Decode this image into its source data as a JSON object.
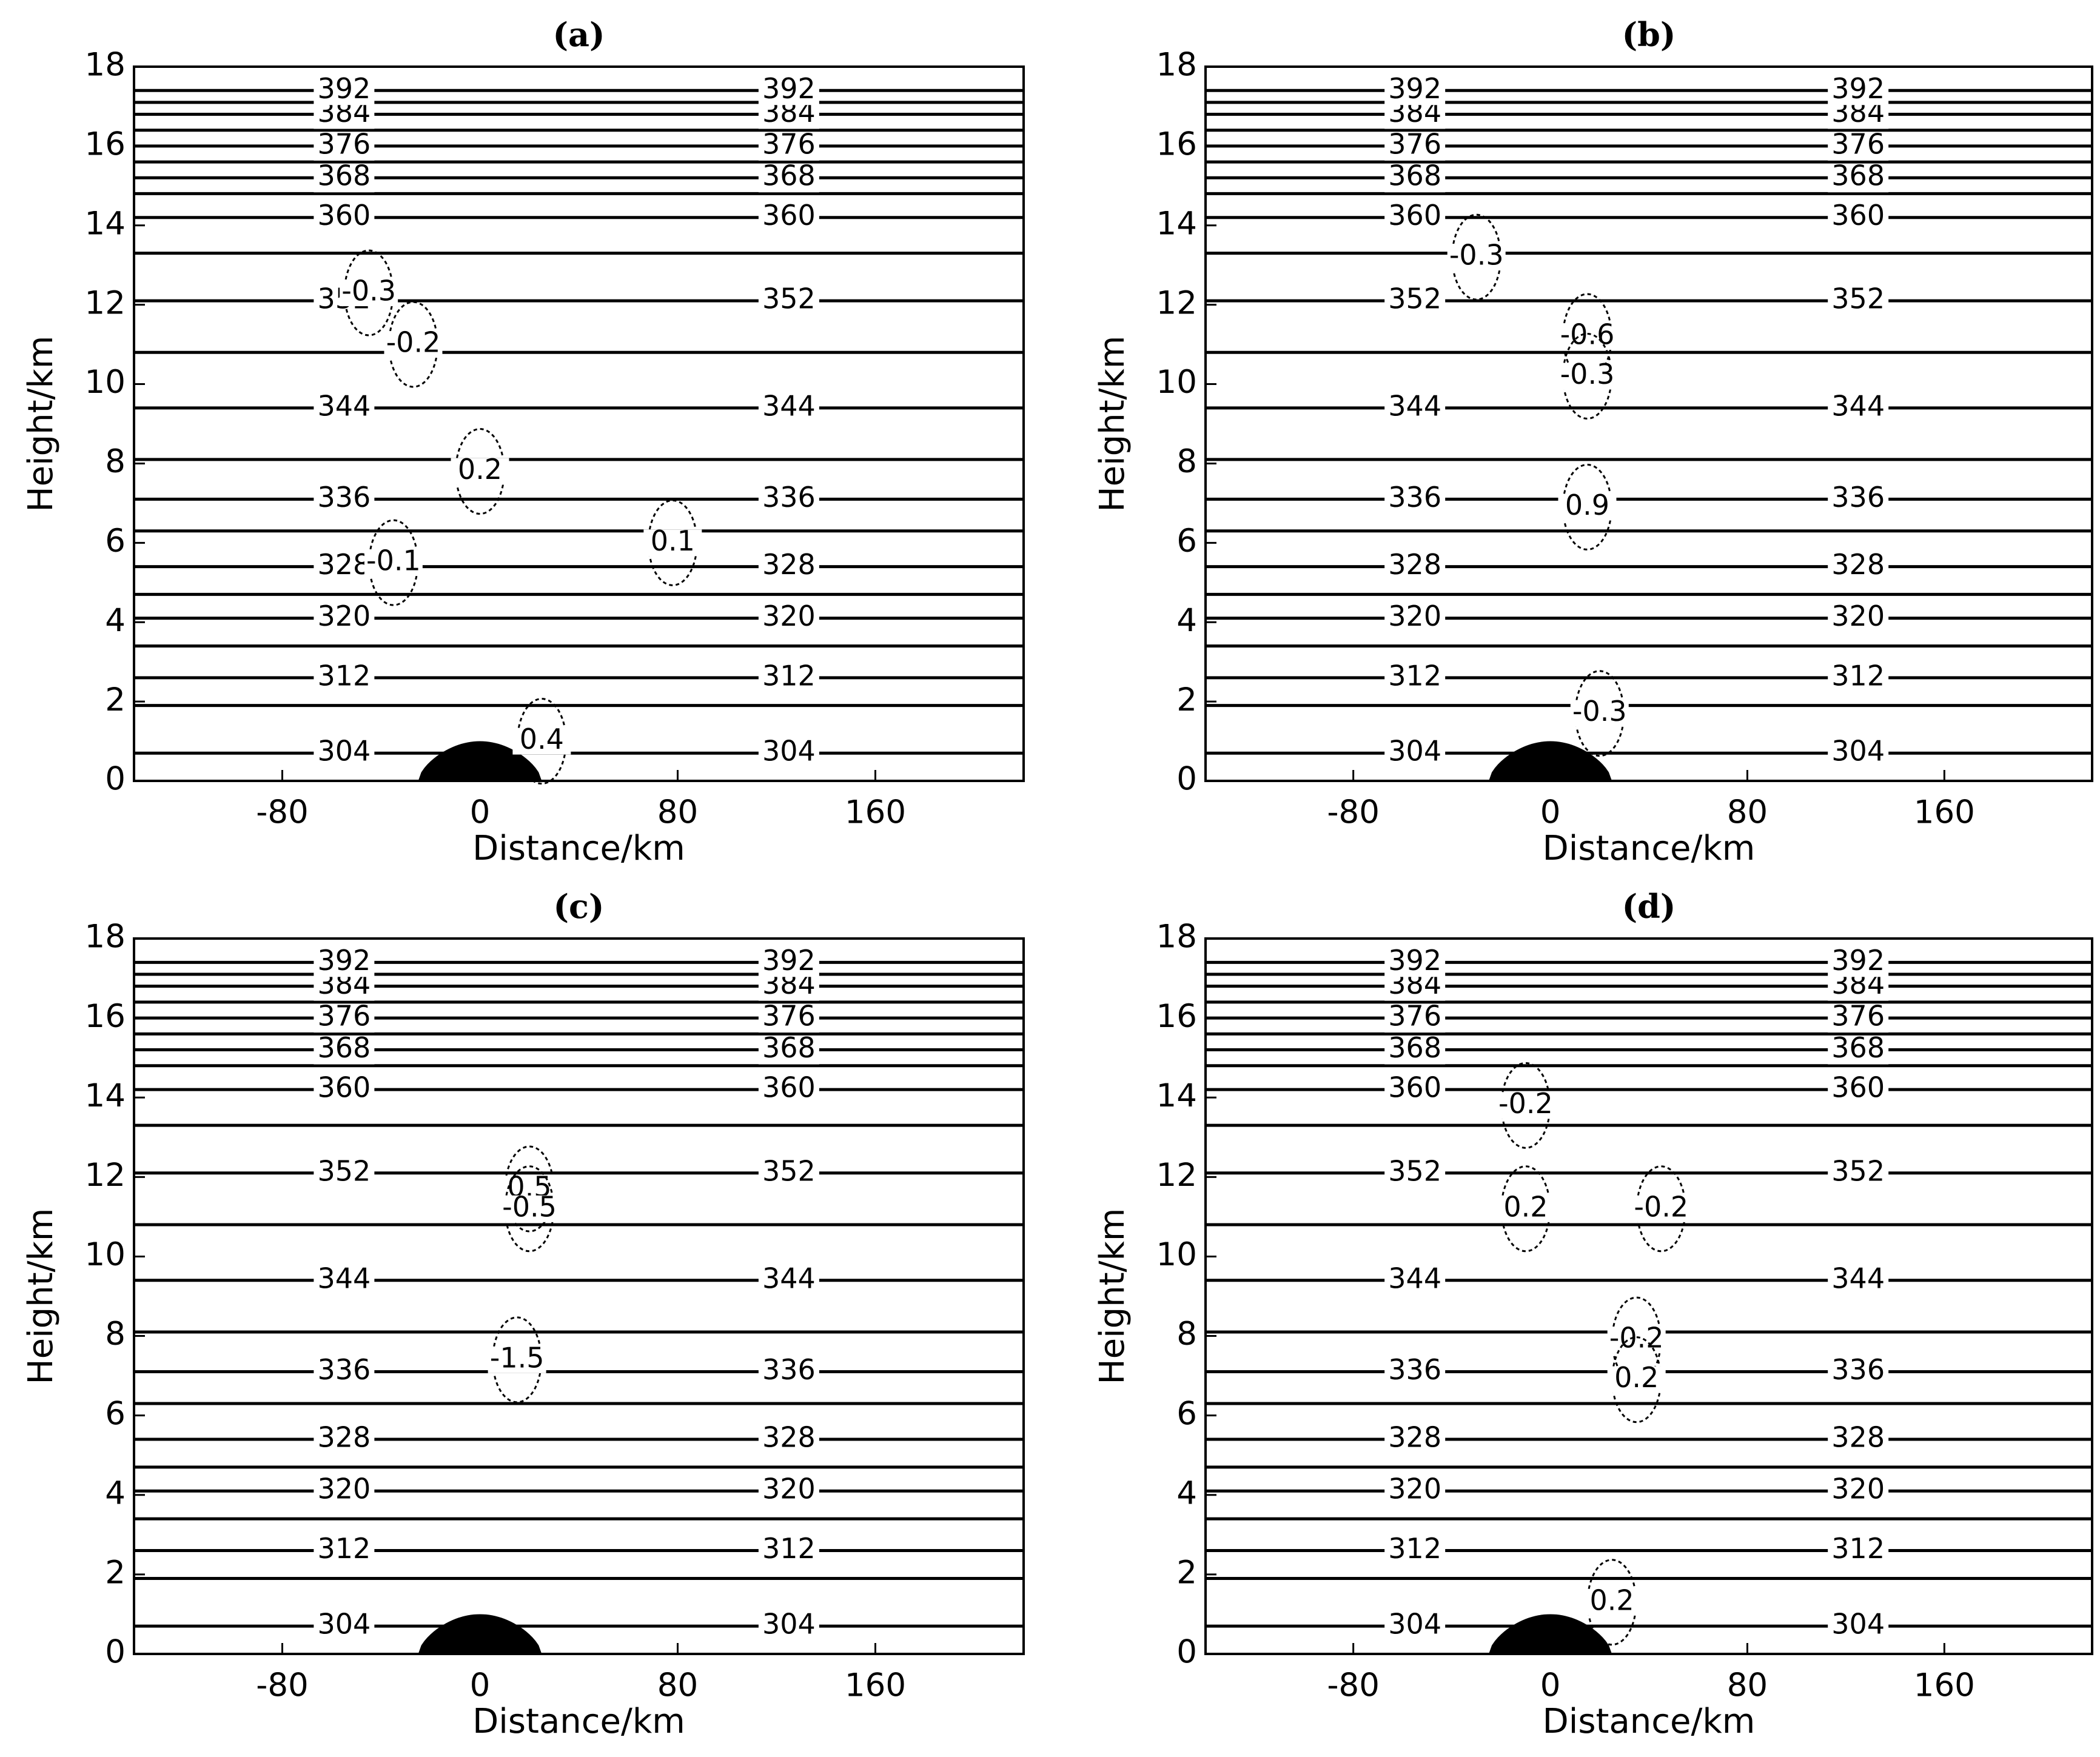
{
  "chart_data": [
    {
      "type": "contour",
      "title": "(a)",
      "x_label": "Distance/km",
      "y_label": "Height/km",
      "xlim": [
        -140,
        220
      ],
      "xticks": [
        -80,
        0,
        80,
        160
      ],
      "ylim": [
        0,
        18
      ],
      "yticks": [
        0,
        2,
        4,
        6,
        8,
        10,
        12,
        14,
        16,
        18
      ],
      "levels": [
        304,
        308,
        312,
        316,
        320,
        324,
        328,
        332,
        336,
        340,
        344,
        348,
        352,
        356,
        360,
        364,
        368,
        372,
        376,
        380,
        384,
        388,
        392
      ],
      "heights": [
        0.7,
        1.9,
        2.6,
        3.4,
        4.1,
        4.7,
        5.4,
        6.3,
        7.1,
        8.1,
        9.4,
        10.8,
        12.1,
        13.3,
        14.2,
        14.8,
        15.2,
        15.6,
        16.0,
        16.4,
        16.8,
        17.1,
        17.4
      ],
      "label_every": 2,
      "terrain_height": 1,
      "terrain_half_width": 25,
      "w_labels": [
        {
          "x": -45,
          "y": 12.3,
          "value": -0.3
        },
        {
          "x": -27,
          "y": 11,
          "value": -0.2
        },
        {
          "x": 0,
          "y": 7.8,
          "value": 0.2
        },
        {
          "x": -35,
          "y": 5.5,
          "value": -0.1
        },
        {
          "x": 78,
          "y": 6,
          "value": 0.1
        },
        {
          "x": 25,
          "y": 1,
          "value": 0.4
        }
      ]
    },
    {
      "type": "contour",
      "title": "(b)",
      "x_label": "Distance/km",
      "y_label": "Height/km",
      "xlim": [
        -140,
        220
      ],
      "xticks": [
        -80,
        0,
        80,
        160
      ],
      "ylim": [
        0,
        18
      ],
      "yticks": [
        0,
        2,
        4,
        6,
        8,
        10,
        12,
        14,
        16,
        18
      ],
      "levels": [
        304,
        308,
        312,
        316,
        320,
        324,
        328,
        332,
        336,
        340,
        344,
        348,
        352,
        356,
        360,
        364,
        368,
        372,
        376,
        380,
        384,
        388,
        392
      ],
      "heights": [
        0.7,
        1.9,
        2.6,
        3.4,
        4.1,
        4.7,
        5.4,
        6.3,
        7.1,
        8.1,
        9.4,
        10.8,
        12.1,
        13.3,
        14.2,
        14.8,
        15.2,
        15.6,
        16.0,
        16.4,
        16.8,
        17.1,
        17.4
      ],
      "label_every": 2,
      "terrain_height": 1,
      "terrain_half_width": 25,
      "w_labels": [
        {
          "x": -30,
          "y": 13.2,
          "value": -0.3
        },
        {
          "x": 15,
          "y": 11.2,
          "value": -0.6
        },
        {
          "x": 15,
          "y": 10.2,
          "value": -0.3
        },
        {
          "x": 15,
          "y": 6.9,
          "value": 0.9
        },
        {
          "x": 20,
          "y": 1.7,
          "value": -0.3
        }
      ]
    },
    {
      "type": "contour",
      "title": "(c)",
      "x_label": "Distance/km",
      "y_label": "Height/km",
      "xlim": [
        -140,
        220
      ],
      "xticks": [
        -80,
        0,
        80,
        160
      ],
      "ylim": [
        0,
        18
      ],
      "yticks": [
        0,
        2,
        4,
        6,
        8,
        10,
        12,
        14,
        16,
        18
      ],
      "levels": [
        304,
        308,
        312,
        316,
        320,
        324,
        328,
        332,
        336,
        340,
        344,
        348,
        352,
        356,
        360,
        364,
        368,
        372,
        376,
        380,
        384,
        388,
        392
      ],
      "heights": [
        0.7,
        1.9,
        2.6,
        3.4,
        4.1,
        4.7,
        5.4,
        6.3,
        7.1,
        8.1,
        9.4,
        10.8,
        12.1,
        13.3,
        14.2,
        14.8,
        15.2,
        15.6,
        16.0,
        16.4,
        16.8,
        17.1,
        17.4
      ],
      "label_every": 2,
      "terrain_height": 1,
      "terrain_half_width": 25,
      "w_labels": [
        {
          "x": 20,
          "y": 11.7,
          "value": 0.5
        },
        {
          "x": 20,
          "y": 11.2,
          "value": -0.5
        },
        {
          "x": 15,
          "y": 7.4,
          "value": -1.5
        }
      ]
    },
    {
      "type": "contour",
      "title": "(d)",
      "x_label": "Distance/km",
      "y_label": "Height/km",
      "xlim": [
        -140,
        220
      ],
      "xticks": [
        -80,
        0,
        80,
        160
      ],
      "ylim": [
        0,
        18
      ],
      "yticks": [
        0,
        2,
        4,
        6,
        8,
        10,
        12,
        14,
        16,
        18
      ],
      "levels": [
        304,
        308,
        312,
        316,
        320,
        324,
        328,
        332,
        336,
        340,
        344,
        348,
        352,
        356,
        360,
        364,
        368,
        372,
        376,
        380,
        384,
        388,
        392
      ],
      "heights": [
        0.7,
        1.9,
        2.6,
        3.4,
        4.1,
        4.7,
        5.4,
        6.3,
        7.1,
        8.1,
        9.4,
        10.8,
        12.1,
        13.3,
        14.2,
        14.8,
        15.2,
        15.6,
        16.0,
        16.4,
        16.8,
        17.1,
        17.4
      ],
      "label_every": 2,
      "terrain_height": 1,
      "terrain_half_width": 25,
      "w_labels": [
        {
          "x": -10,
          "y": 13.8,
          "value": -0.2
        },
        {
          "x": -10,
          "y": 11.2,
          "value": 0.2
        },
        {
          "x": 45,
          "y": 11.2,
          "value": -0.2
        },
        {
          "x": 35,
          "y": 7.9,
          "value": -0.2
        },
        {
          "x": 35,
          "y": 6.9,
          "value": 0.2
        },
        {
          "x": 25,
          "y": 1.3,
          "value": 0.2
        }
      ]
    }
  ]
}
